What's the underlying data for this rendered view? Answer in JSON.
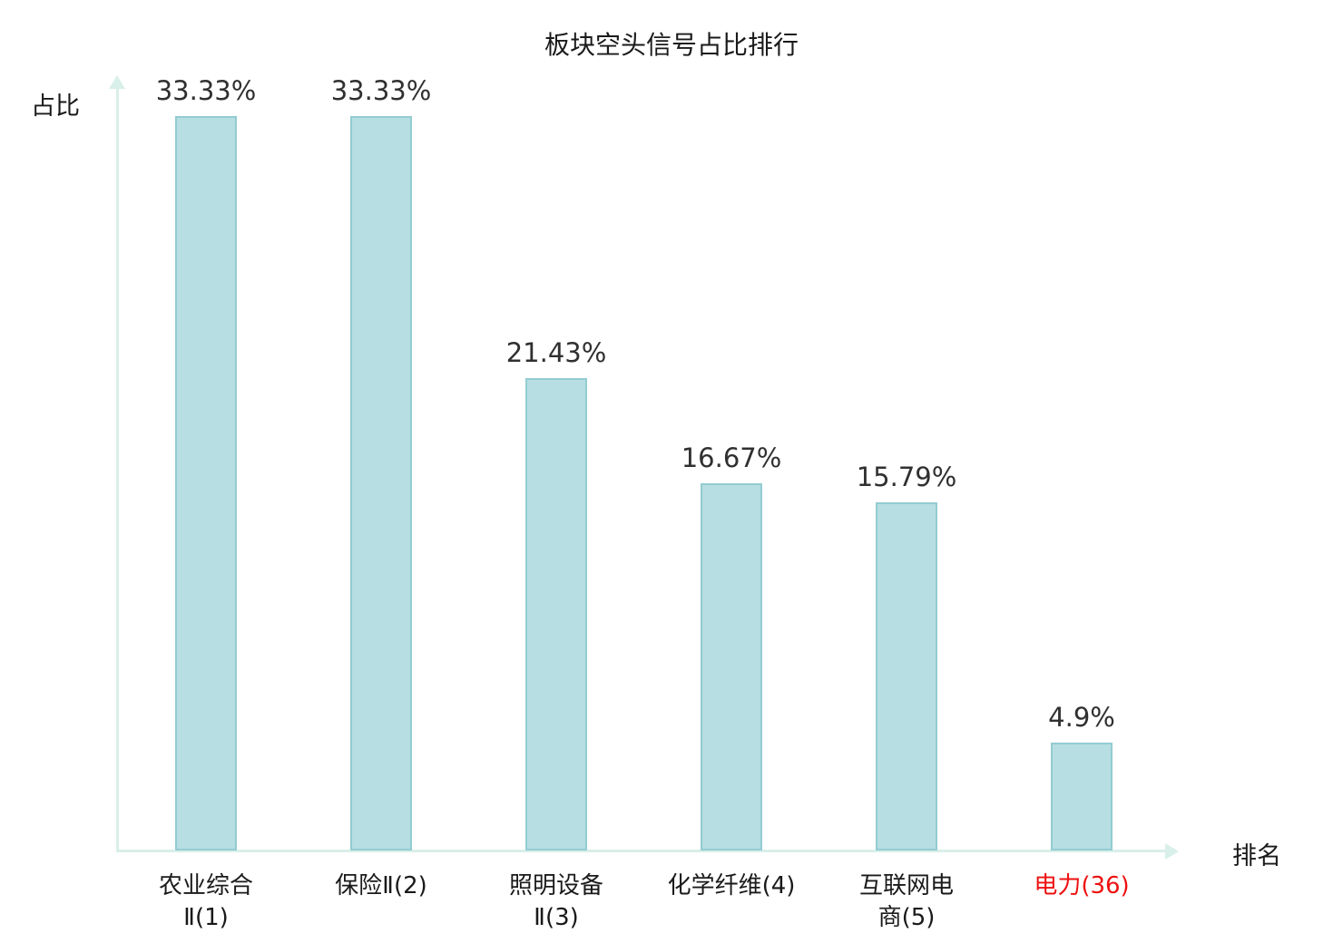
{
  "title": "板块空头信号占比排行",
  "colors": {
    "bar_fill": "#b7dee2",
    "bar_border": "#93ccd2",
    "axis": "#d9efe9",
    "text": "#1a1a1a",
    "value_text": "#303030",
    "highlight": "#ee1111"
  },
  "chart_data": {
    "type": "bar",
    "title": "板块空头信号占比排行",
    "xlabel": "排名",
    "ylabel": "占比",
    "categories": [
      "农业综合Ⅱ(1)",
      "保险Ⅱ(2)",
      "照明设备Ⅱ(3)",
      "化学纤维(4)",
      "互联网电商(5)",
      "电力(36)"
    ],
    "tick_labels": [
      "农业综合\nⅡ(1)",
      "保险Ⅱ(2)",
      "照明设备\nⅡ(3)",
      "化学纤维(4)",
      "互联网电\n商(5)",
      "电力(36)"
    ],
    "values": [
      33.33,
      33.33,
      21.43,
      16.67,
      15.79,
      4.9
    ],
    "value_labels": [
      "33.33%",
      "33.33%",
      "21.43%",
      "16.67%",
      "15.79%",
      "4.9%"
    ],
    "highlight_index": 5,
    "ylim": [
      0,
      33.33
    ],
    "grid": false,
    "legend": null
  }
}
